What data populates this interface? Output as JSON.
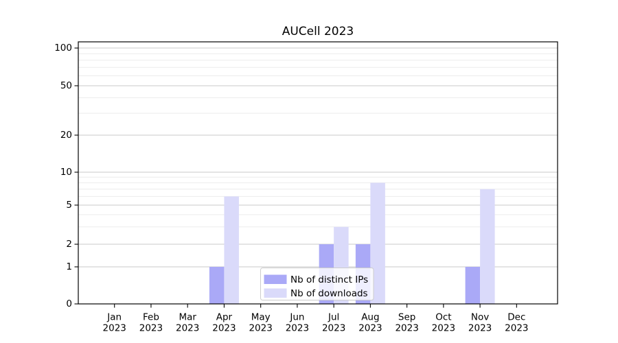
{
  "chart_data": {
    "type": "bar",
    "title": "AUCell 2023",
    "xlabel": "",
    "ylabel": "",
    "yscale": "symlog",
    "ylim": [
      0,
      110
    ],
    "grid": true,
    "categories": [
      "Jan 2023",
      "Feb 2023",
      "Mar 2023",
      "Apr 2023",
      "May 2023",
      "Jun 2023",
      "Jul 2023",
      "Aug 2023",
      "Sep 2023",
      "Oct 2023",
      "Nov 2023",
      "Dec 2023"
    ],
    "y_major_ticks": [
      0,
      1,
      2,
      5,
      10,
      20,
      50,
      100
    ],
    "y_minor_ticks": [
      3,
      4,
      6,
      7,
      8,
      9,
      30,
      40,
      60,
      70,
      80,
      90
    ],
    "series": [
      {
        "name": "Nb of distinct IPs",
        "color": "#aaa9f7",
        "values": [
          0,
          0,
          0,
          1,
          0,
          0,
          2,
          2,
          0,
          0,
          1,
          0
        ]
      },
      {
        "name": "Nb of downloads",
        "color": "#dadafa",
        "values": [
          0,
          0,
          0,
          6,
          0,
          0,
          3,
          8,
          0,
          0,
          7,
          0
        ]
      }
    ],
    "legend": {
      "position": "lower center",
      "items": [
        "Nb of distinct IPs",
        "Nb of downloads"
      ]
    }
  },
  "colors": {
    "background": "#ffffff",
    "axis": "#000000",
    "major_grid": "#c9c9c9",
    "minor_grid": "#ececec",
    "legend_bg": "rgba(255,255,255,0.8)",
    "legend_border": "#cccccc"
  }
}
